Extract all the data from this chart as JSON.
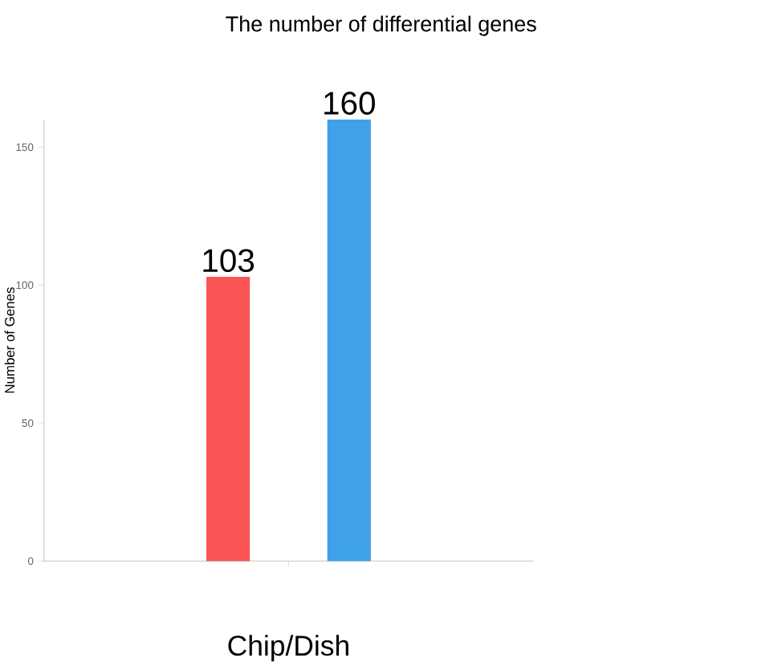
{
  "chart_data": {
    "type": "bar",
    "title": "The number of differential genes",
    "xlabel": "Chip/Dish",
    "ylabel": "Number of Genes",
    "categories": [
      null
    ],
    "series": [
      {
        "color": "#fa5555",
        "values": [
          103
        ]
      },
      {
        "color": "#3fa2e8",
        "values": [
          160
        ]
      }
    ],
    "ylim": [
      0,
      160
    ],
    "yticks": [
      0,
      50,
      100,
      150
    ],
    "data_labels": true
  }
}
